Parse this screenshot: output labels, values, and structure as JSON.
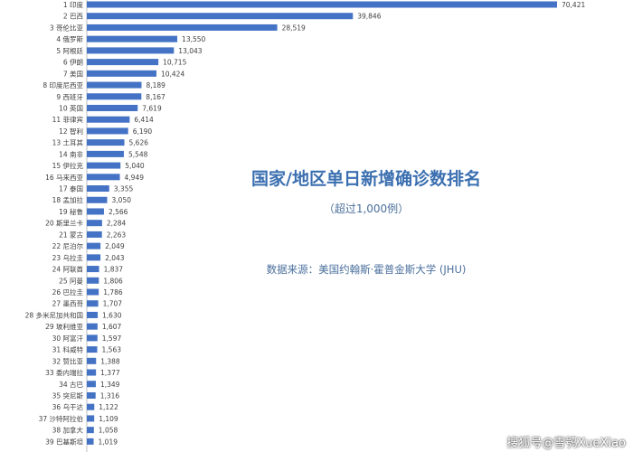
{
  "chart_data": {
    "type": "bar",
    "orientation": "horizontal",
    "title": "国家/地区单日新增确诊数排名",
    "subtitle": "（超过1,000例）",
    "source": "数据来源：美国约翰斯·霍普金斯大学 (JHU)",
    "bar_color": "#4472c4",
    "categories": [
      "1 印度",
      "2 巴西",
      "3 哥伦比亚",
      "4 俄罗斯",
      "5 阿根廷",
      "6 伊朗",
      "7 美国",
      "8 印度尼西亚",
      "9 西班牙",
      "10 英国",
      "11 菲律宾",
      "12 智利",
      "13 土耳其",
      "14 南非",
      "15 伊拉克",
      "16 马来西亚",
      "17 泰国",
      "18 孟加拉",
      "19 秘鲁",
      "20 斯里兰卡",
      "21 蒙古",
      "22 尼泊尔",
      "23 乌拉圭",
      "24 阿联酋",
      "25 阿曼",
      "26 巴拉圭",
      "27 墨西哥",
      "28 多米尼加共和国",
      "29 玻利维亚",
      "30 阿富汗",
      "31 科威特",
      "32 赞比亚",
      "33 委内瑞拉",
      "34 古巴",
      "35 突尼斯",
      "36 乌干达",
      "37 沙特阿拉伯",
      "38 加拿大",
      "39 巴基斯坦"
    ],
    "values": [
      70421,
      39846,
      28519,
      13550,
      13043,
      10715,
      10424,
      8189,
      8167,
      7619,
      6414,
      6190,
      5626,
      5548,
      5040,
      4949,
      3355,
      3050,
      2566,
      2284,
      2263,
      2049,
      2043,
      1837,
      1806,
      1786,
      1707,
      1630,
      1607,
      1597,
      1563,
      1388,
      1377,
      1349,
      1316,
      1122,
      1109,
      1058,
      1019
    ],
    "value_labels": [
      "70,421",
      "39,846",
      "28,519",
      "13,550",
      "13,043",
      "10,715",
      "10,424",
      "8,189",
      "8,167",
      "7,619",
      "6,414",
      "6,190",
      "5,626",
      "5,548",
      "5,040",
      "4,949",
      "3,355",
      "3,050",
      "2,566",
      "2,284",
      "2,263",
      "2,049",
      "2,043",
      "1,837",
      "1,806",
      "1,786",
      "1,707",
      "1,630",
      "1,607",
      "1,597",
      "1,563",
      "1,388",
      "1,377",
      "1,349",
      "1,316",
      "1,122",
      "1,109",
      "1,058",
      "1,019"
    ],
    "xlim": [
      0,
      70421
    ],
    "grid": false,
    "legend": "none"
  },
  "watermark": "搜狐号@雪鸮XueXiao"
}
